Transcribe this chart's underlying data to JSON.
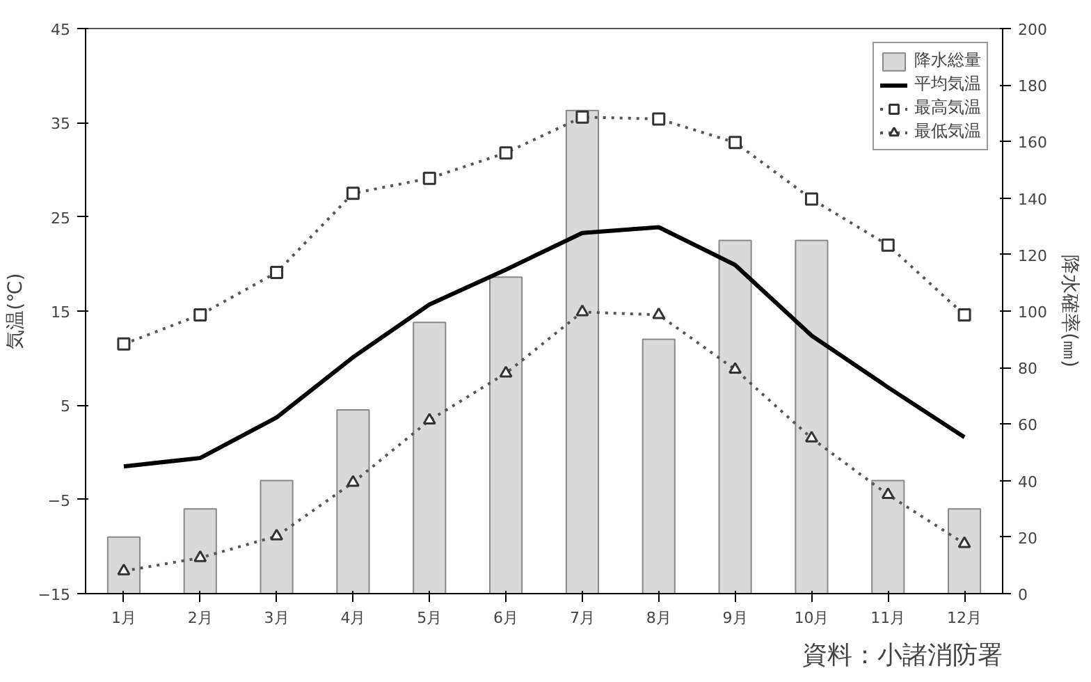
{
  "chart_data": {
    "type": "line",
    "categories": [
      "1月",
      "2月",
      "3月",
      "4月",
      "5月",
      "6月",
      "7月",
      "8月",
      "9月",
      "10月",
      "11月",
      "12月"
    ],
    "series": [
      {
        "name": "降水総量",
        "type": "bar",
        "axis": "y2",
        "color": "#d9d9d9",
        "values": [
          20,
          30,
          40,
          65,
          96,
          112,
          171,
          90,
          125,
          125,
          40,
          30
        ]
      },
      {
        "name": "平均気温",
        "color": "#000000",
        "line_style": "solid",
        "marker": "none",
        "values": [
          -1.5,
          -0.6,
          3.7,
          10.1,
          15.7,
          19.4,
          23.3,
          23.9,
          19.9,
          12.4,
          6.9,
          1.6
        ]
      },
      {
        "name": "最高気温",
        "color": "#555555",
        "line_style": "dotted",
        "marker": "square",
        "values": [
          11.5,
          14.6,
          19.1,
          27.5,
          29.1,
          31.8,
          35.6,
          35.4,
          32.9,
          26.9,
          22.0,
          14.6
        ]
      },
      {
        "name": "最低気温",
        "color": "#555555",
        "line_style": "dotted",
        "marker": "triangle",
        "values": [
          -12.6,
          -11.2,
          -8.9,
          -3.2,
          3.4,
          8.4,
          14.9,
          14.6,
          8.8,
          1.5,
          -4.5,
          -9.7
        ]
      }
    ],
    "ylabel": "気温(℃)",
    "y2label": "降水確率(㎜)",
    "ylim": [
      -15,
      45
    ],
    "yticks": [
      -15,
      -5,
      5,
      15,
      25,
      35,
      45
    ],
    "y2lim": [
      0,
      200
    ],
    "y2ticks": [
      0,
      20,
      40,
      60,
      80,
      100,
      120,
      140,
      160,
      180,
      200
    ],
    "legend": "top right",
    "grid": false,
    "annotations": [
      "資料：小諸消防署"
    ]
  }
}
